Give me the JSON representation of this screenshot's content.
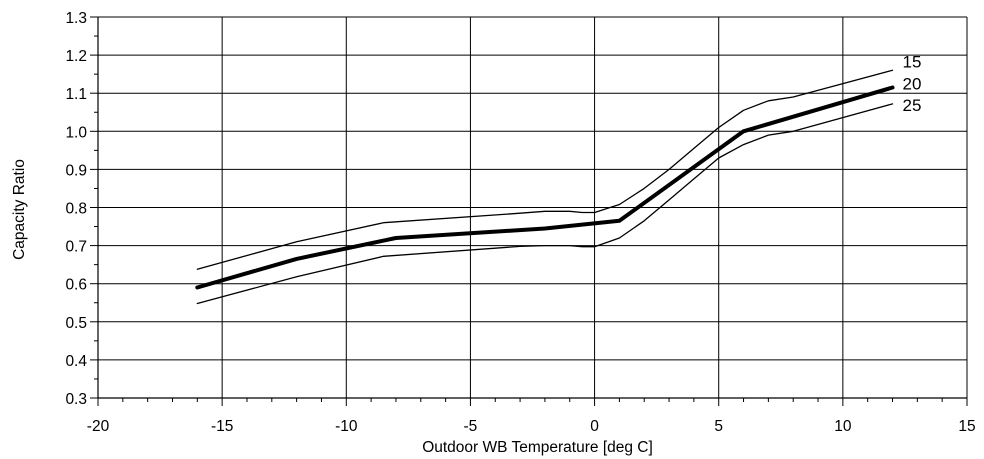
{
  "chart_data": {
    "type": "line",
    "xlabel": "Outdoor WB Temperature [deg C]",
    "ylabel": "Capacity Ratio",
    "xlim": [
      -20,
      15
    ],
    "ylim": [
      0.3,
      1.3
    ],
    "x_ticks": [
      -20,
      -15,
      -10,
      -5,
      0,
      5,
      10,
      15
    ],
    "y_ticks": [
      "0.3",
      "0.4",
      "0.5",
      "0.6",
      "0.7",
      "0.8",
      "0.9",
      "1.0",
      "1.1",
      "1.2",
      "1.3"
    ],
    "grid": true,
    "series": [
      {
        "name": "15",
        "color": "#000000",
        "weight": "thin",
        "x": [
          -16,
          -12,
          -8.5,
          -3,
          -2,
          -1,
          -0.5,
          0,
          1,
          2,
          3,
          4,
          5,
          6,
          7,
          8,
          12
        ],
        "y": [
          0.638,
          0.71,
          0.76,
          0.785,
          0.79,
          0.79,
          0.787,
          0.787,
          0.808,
          0.85,
          0.9,
          0.955,
          1.01,
          1.055,
          1.08,
          1.09,
          1.16
        ]
      },
      {
        "name": "20",
        "color": "#000000",
        "weight": "bold",
        "x": [
          -16,
          -12,
          -8,
          -2,
          1,
          6,
          12
        ],
        "y": [
          0.59,
          0.665,
          0.72,
          0.745,
          0.765,
          1.0,
          1.115
        ]
      },
      {
        "name": "25",
        "color": "#000000",
        "weight": "thin",
        "x": [
          -16,
          -12,
          -8.5,
          -3,
          -2,
          -1,
          -0.5,
          0,
          1,
          2,
          3,
          4,
          5,
          6,
          7,
          8,
          12
        ],
        "y": [
          0.548,
          0.618,
          0.672,
          0.698,
          0.7,
          0.7,
          0.697,
          0.697,
          0.72,
          0.765,
          0.82,
          0.875,
          0.93,
          0.965,
          0.99,
          1.0,
          1.072
        ]
      }
    ]
  }
}
